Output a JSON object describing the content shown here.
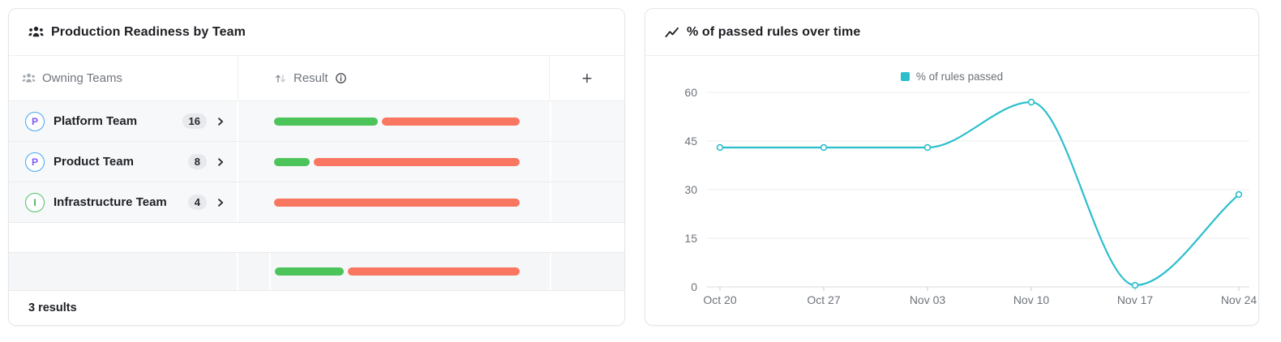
{
  "left_card": {
    "title": "Production Readiness by Team",
    "header": {
      "owning_teams": "Owning Teams",
      "result": "Result",
      "add": "+"
    },
    "rows": [
      {
        "initial": "P",
        "name": "Platform Team",
        "count": "16",
        "passed_pct": 42.3,
        "failed_pct": 56,
        "avatar": {
          "border": "#42a7f5",
          "letter": "#7a5af8"
        }
      },
      {
        "initial": "P",
        "name": "Product Team",
        "count": "8",
        "passed_pct": 14.6,
        "failed_pct": 84,
        "avatar": {
          "border": "#42a7f5",
          "letter": "#7a5af8"
        }
      },
      {
        "initial": "I",
        "name": "Infrastructure Team",
        "count": "4",
        "passed_pct": 0,
        "failed_pct": 100,
        "avatar": {
          "border": "#4fc065",
          "letter": "#43b35a"
        }
      }
    ],
    "summary": {
      "passed_pct": 28,
      "failed_pct": 71
    },
    "footer": "3 results",
    "colors": {
      "passed": "#4cc45a",
      "failed": "#f97660"
    }
  },
  "right_card": {
    "title": "% of passed rules over time"
  },
  "chart_data": {
    "type": "line",
    "title": "% of passed rules over time",
    "x": [
      "Oct 20",
      "Oct 27",
      "Nov 03",
      "Nov 10",
      "Nov 17",
      "Nov 24"
    ],
    "series": [
      {
        "name": "% of rules passed",
        "color": "#2bbfcc",
        "values": [
          43,
          43,
          43,
          57,
          0.5,
          28.5
        ]
      }
    ],
    "xlabel": "",
    "ylabel": "",
    "ylim": [
      0,
      60
    ],
    "yticks": [
      0,
      15,
      30,
      45,
      60
    ],
    "grid": "horizontal",
    "legend_position": "top-center",
    "marker": "hollow-circle"
  }
}
